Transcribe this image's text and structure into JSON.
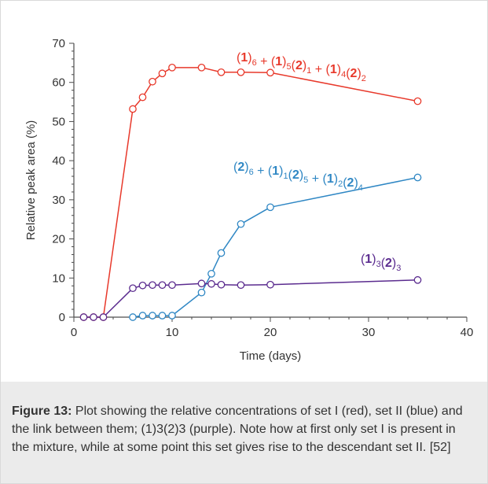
{
  "chart_data": {
    "type": "line",
    "xlabel": "Time (days)",
    "ylabel": "Relative peak area (%)",
    "xlim": [
      0,
      40
    ],
    "ylim": [
      0,
      70
    ],
    "xticks": [
      "0",
      "10",
      "20",
      "30",
      "40"
    ],
    "yticks": [
      "0",
      "10",
      "20",
      "30",
      "40",
      "50",
      "60",
      "70"
    ],
    "grid": false,
    "series": [
      {
        "label_parts": [
          "(1)",
          "6",
          " + (1)",
          "5",
          "(2)",
          "1",
          " + (1)",
          "4",
          "(2)",
          "2"
        ],
        "color": "#e8392b",
        "x": [
          1,
          2,
          3,
          6,
          7,
          8,
          9,
          10,
          13,
          15,
          17,
          20,
          35
        ],
        "y": [
          0,
          0,
          0,
          53.2,
          56.2,
          60.2,
          62.3,
          63.8,
          63.8,
          62.6,
          62.6,
          62.5,
          55.2
        ]
      },
      {
        "label_parts": [
          "(2)",
          "6",
          " + (1)",
          "1",
          "(2)",
          "5",
          " + (1)",
          "2",
          "(2)",
          "4"
        ],
        "color": "#2f87c4",
        "x": [
          6,
          7,
          8,
          9,
          10,
          13,
          14,
          15,
          17,
          20,
          35
        ],
        "y": [
          0,
          0.4,
          0.4,
          0.4,
          0.4,
          6.3,
          11.1,
          16.4,
          23.8,
          28.1,
          35.7
        ]
      },
      {
        "label_parts": [
          "(1)",
          "3",
          "(2)",
          "3"
        ],
        "color": "#5b2c8f",
        "x": [
          1,
          2,
          3,
          6,
          7,
          8,
          9,
          10,
          13,
          14,
          15,
          17,
          20,
          35
        ],
        "y": [
          0,
          0,
          0,
          7.4,
          8.1,
          8.2,
          8.2,
          8.2,
          8.6,
          8.5,
          8.3,
          8.2,
          8.3,
          9.5
        ]
      }
    ]
  },
  "caption": {
    "label": "Figure 13:",
    "text": " Plot showing the relative concentrations of set I (red), set II (blue) and the link between them; (1)3(2)3 (purple). Note how at first only set I is present in the mixture, while at some point this set gives rise to the descendant set II. [52]"
  }
}
